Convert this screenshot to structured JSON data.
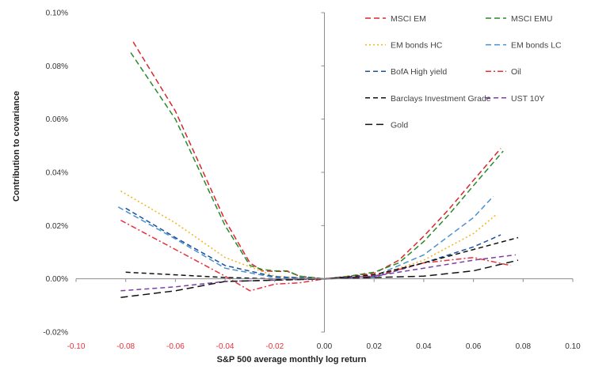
{
  "chart_data": {
    "type": "line",
    "xlabel": "S&P 500 average monthly log return",
    "ylabel": "Contribution to covariance",
    "xlim": [
      -0.1,
      0.1
    ],
    "ylim": [
      -0.0002,
      0.001
    ],
    "x_ticks": [
      "-0.10",
      "-0.08",
      "-0.06",
      "-0.04",
      "-0.02",
      "0.00",
      "0.02",
      "0.04",
      "0.06",
      "0.08",
      "0.10"
    ],
    "x_tick_values": [
      -0.1,
      -0.08,
      -0.06,
      -0.04,
      -0.02,
      0.0,
      0.02,
      0.04,
      0.06,
      0.08,
      0.1
    ],
    "x_tick_colors": [
      "#e8303a",
      "#e8303a",
      "#e8303a",
      "#e8303a",
      "#e8303a",
      "#333333",
      "#333333",
      "#333333",
      "#333333",
      "#333333",
      "#333333"
    ],
    "y_ticks": [
      "-0.02%",
      "0.00%",
      "0.02%",
      "0.04%",
      "0.06%",
      "0.08%",
      "0.10%"
    ],
    "y_tick_values": [
      -0.0002,
      0.0,
      0.0002,
      0.0004,
      0.0006,
      0.0008,
      0.001
    ],
    "grid": false,
    "legend_position": "top-right",
    "series": [
      {
        "name": "MSCI EM",
        "color": "#d9262d",
        "dash": "7,4",
        "x": [
          -0.077,
          -0.06,
          -0.04,
          -0.03,
          -0.025,
          -0.02,
          -0.015,
          -0.01,
          0.0,
          0.01,
          0.02,
          0.03,
          0.04,
          0.05,
          0.06,
          0.071
        ],
        "y": [
          0.00089,
          0.00063,
          0.00022,
          6e-05,
          3e-05,
          2.8e-05,
          2.8e-05,
          1e-05,
          0.0,
          1e-05,
          2e-05,
          7e-05,
          0.00016,
          0.00026,
          0.00037,
          0.00049
        ]
      },
      {
        "name": "MSCI EMU",
        "color": "#2a8a2a",
        "dash": "7,4",
        "x": [
          -0.078,
          -0.06,
          -0.04,
          -0.03,
          -0.025,
          -0.02,
          -0.015,
          -0.01,
          0.0,
          0.01,
          0.02,
          0.03,
          0.04,
          0.05,
          0.06,
          0.072
        ],
        "y": [
          0.00085,
          0.0006,
          0.0002,
          5e-05,
          3.5e-05,
          3e-05,
          3e-05,
          1e-05,
          0.0,
          1e-05,
          2.5e-05,
          6e-05,
          0.00014,
          0.00024,
          0.00035,
          0.00048
        ]
      },
      {
        "name": "EM bonds HC",
        "color": "#f2b41d",
        "dash": "2,3",
        "x": [
          -0.082,
          -0.06,
          -0.04,
          -0.02,
          0.0,
          0.02,
          0.04,
          0.06,
          0.069
        ],
        "y": [
          0.00033,
          0.00021,
          8e-05,
          1e-05,
          0.0,
          1e-05,
          7e-05,
          0.00017,
          0.00024
        ]
      },
      {
        "name": "EM bonds LC",
        "color": "#4a90d0",
        "dash": "7,4",
        "x": [
          -0.083,
          -0.06,
          -0.04,
          -0.02,
          0.0,
          0.02,
          0.04,
          0.06,
          0.068
        ],
        "y": [
          0.00027,
          0.00015,
          4e-05,
          5e-06,
          0.0,
          1e-05,
          9e-05,
          0.00023,
          0.00031
        ]
      },
      {
        "name": "BofA High yield",
        "color": "#1c4f9c",
        "dash": "6,4",
        "x": [
          -0.08,
          -0.06,
          -0.04,
          -0.02,
          0.0,
          0.02,
          0.04,
          0.06,
          0.071
        ],
        "y": [
          0.000265,
          0.000155,
          5e-05,
          8e-06,
          0.0,
          6e-06,
          6e-05,
          0.00012,
          0.000165
        ]
      },
      {
        "name": "Oil",
        "color": "#e8303a",
        "dash": "7,3,2,3",
        "x": [
          -0.082,
          -0.06,
          -0.04,
          -0.03,
          -0.02,
          -0.01,
          0.0,
          0.02,
          0.04,
          0.06,
          0.075
        ],
        "y": [
          0.00022,
          0.00011,
          1e-05,
          -4.5e-05,
          -2e-05,
          -1.5e-05,
          0.0,
          1e-05,
          6e-05,
          8e-05,
          5e-05
        ]
      },
      {
        "name": "Barclays Investment Grade",
        "color": "#111111",
        "dash": "6,4",
        "x": [
          -0.08,
          -0.06,
          -0.04,
          -0.02,
          0.0,
          0.02,
          0.04,
          0.06,
          0.078
        ],
        "y": [
          2.5e-05,
          1.5e-05,
          5e-06,
          0.0,
          0.0,
          1.5e-05,
          6e-05,
          0.00011,
          0.000155
        ]
      },
      {
        "name": "UST 10Y",
        "color": "#7b3fa8",
        "dash": "6,4",
        "x": [
          -0.082,
          -0.06,
          -0.04,
          -0.02,
          0.0,
          0.02,
          0.04,
          0.06,
          0.077
        ],
        "y": [
          -4.5e-05,
          -3e-05,
          -1e-05,
          -5e-06,
          0.0,
          1e-05,
          4e-05,
          7e-05,
          9e-05
        ]
      },
      {
        "name": "Gold",
        "color": "#111111",
        "dash": "9,5",
        "x": [
          -0.082,
          -0.06,
          -0.04,
          -0.02,
          0.0,
          0.02,
          0.04,
          0.06,
          0.078
        ],
        "y": [
          -7e-05,
          -4.5e-05,
          -1e-05,
          -5e-06,
          0.0,
          5e-06,
          1e-05,
          3e-05,
          7e-05
        ]
      }
    ]
  }
}
